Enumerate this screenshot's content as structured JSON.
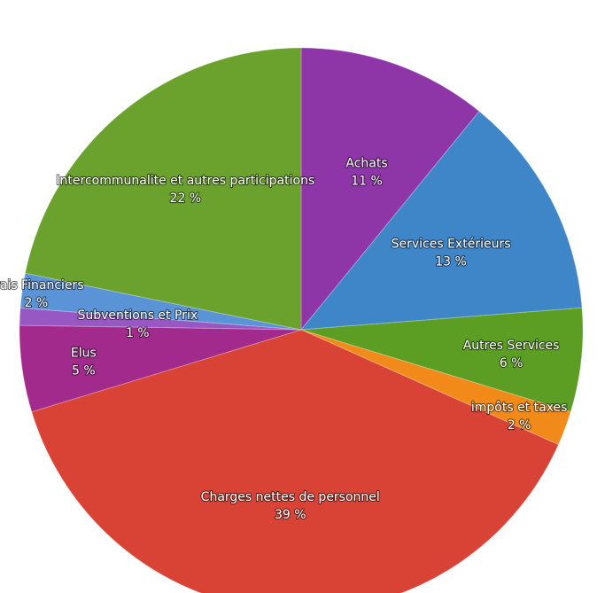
{
  "chart_data": {
    "type": "pie",
    "slices": [
      {
        "label": "Achats",
        "value_label": "11 %",
        "value": 11,
        "color": "#8e35a8"
      },
      {
        "label": "Services Extérieurs",
        "value_label": "13 %",
        "value": 13,
        "color": "#3f86c9"
      },
      {
        "label": "Autres Services",
        "value_label": "6 %",
        "value": 6,
        "color": "#5c9e24"
      },
      {
        "label": "impôts et taxes",
        "value_label": "2 %",
        "value": 2,
        "color": "#f28a19"
      },
      {
        "label": "Charges nettes de personnel",
        "value_label": "39 %",
        "value": 39,
        "color": "#d94336"
      },
      {
        "label": "Elus",
        "value_label": "5 %",
        "value": 5,
        "color": "#a12a8c"
      },
      {
        "label": "Subventions et Prix",
        "value_label": "1 %",
        "value": 1,
        "color": "#9858c4"
      },
      {
        "label": "Frais Financiers",
        "value_label": "2 %",
        "value": 2,
        "color": "#5a93d6"
      },
      {
        "label": "Intercommunalite et autres participations",
        "value_label": "22 %",
        "value": 22,
        "color": "#6aa22d"
      }
    ]
  }
}
